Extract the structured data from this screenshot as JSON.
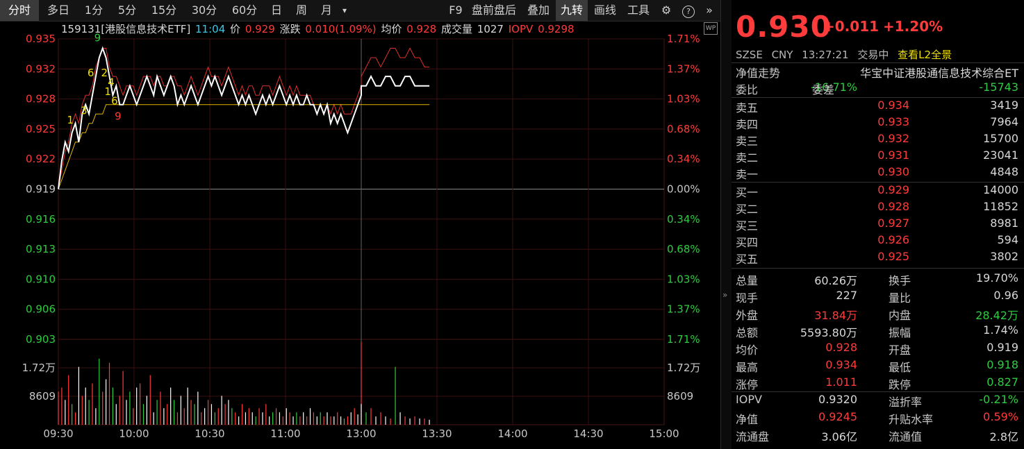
{
  "toolbar": {
    "periods": [
      "分时",
      "多日",
      "1分",
      "5分",
      "15分",
      "30分",
      "60分",
      "日",
      "周",
      "月"
    ],
    "more_icon": "▾",
    "tools": [
      "F9",
      "盘前盘后",
      "叠加",
      "九转",
      "画线",
      "工具"
    ],
    "gear_icon": "⚙",
    "help_icon": "?",
    "expand_icon": "»"
  },
  "info": {
    "code_name": "159131[港股信息技术ETF]",
    "time": "11:04",
    "price_label": "价",
    "price": "0.929",
    "change_label": "涨跌",
    "change": "0.010(1.09%)",
    "avg_label": "均价",
    "avg": "0.928",
    "volume_label": "成交量",
    "volume": "1027",
    "iopv_label": "IOPV",
    "iopv": "0.9298",
    "badge": "WP"
  },
  "chart_data": {
    "type": "line",
    "price_ticks": [
      "0.935",
      "0.932",
      "0.928",
      "0.925",
      "0.922",
      "0.919",
      "0.916",
      "0.913",
      "0.910",
      "0.906",
      "0.903"
    ],
    "pct_ticks": [
      "1.71%",
      "1.37%",
      "1.03%",
      "0.68%",
      "0.34%",
      "0.00%",
      "0.34%",
      "0.68%",
      "1.03%",
      "1.37%",
      "1.71%"
    ],
    "volume_ticks": [
      "1.72万",
      "8609"
    ],
    "x_ticks": [
      "09:30",
      "10:00",
      "10:30",
      "11:00",
      "13:00",
      "13:30",
      "14:00",
      "14:30",
      "15:00"
    ],
    "prev_close": 0.919,
    "ylim": [
      0.903,
      0.935
    ],
    "price": [
      0.919,
      0.922,
      0.924,
      0.923,
      0.925,
      0.926,
      0.924,
      0.927,
      0.928,
      0.927,
      0.929,
      0.931,
      0.933,
      0.934,
      0.933,
      0.931,
      0.929,
      0.93,
      0.928,
      0.928,
      0.929,
      0.93,
      0.929,
      0.928,
      0.929,
      0.93,
      0.931,
      0.93,
      0.929,
      0.931,
      0.93,
      0.929,
      0.93,
      0.931,
      0.93,
      0.928,
      0.929,
      0.928,
      0.929,
      0.93,
      0.929,
      0.928,
      0.929,
      0.93,
      0.931,
      0.93,
      0.931,
      0.93,
      0.929,
      0.93,
      0.931,
      0.93,
      0.929,
      0.928,
      0.929,
      0.928,
      0.929,
      0.928,
      0.927,
      0.928,
      0.929,
      0.928,
      0.929,
      0.928,
      0.929,
      0.93,
      0.929,
      0.928,
      0.929,
      0.928,
      0.929,
      0.928,
      0.928,
      0.929,
      0.928,
      0.928,
      0.927,
      0.928,
      0.927,
      0.928,
      0.926,
      0.927,
      0.926,
      0.927,
      0.926,
      0.925,
      0.926,
      0.927,
      0.928,
      0.929,
      0.93,
      0.93,
      0.931,
      0.93,
      0.93,
      0.931,
      0.931,
      0.93,
      0.93,
      0.931,
      0.931,
      0.93,
      0.93,
      0.93,
      0.93
    ],
    "iopv": [
      0.919,
      0.921,
      0.923,
      0.924,
      0.926,
      0.927,
      0.926,
      0.928,
      0.929,
      0.929,
      0.93,
      0.932,
      0.933,
      0.934,
      0.934,
      0.932,
      0.931,
      0.931,
      0.93,
      0.929,
      0.93,
      0.93,
      0.93,
      0.929,
      0.93,
      0.931,
      0.931,
      0.931,
      0.93,
      0.931,
      0.931,
      0.93,
      0.93,
      0.931,
      0.931,
      0.93,
      0.93,
      0.929,
      0.93,
      0.931,
      0.93,
      0.929,
      0.93,
      0.931,
      0.932,
      0.931,
      0.931,
      0.931,
      0.93,
      0.931,
      0.932,
      0.931,
      0.93,
      0.929,
      0.93,
      0.929,
      0.93,
      0.93,
      0.929,
      0.929,
      0.93,
      0.93,
      0.93,
      0.929,
      0.93,
      0.931,
      0.93,
      0.929,
      0.93,
      0.929,
      0.93,
      0.929,
      0.929,
      0.929,
      0.929,
      0.928,
      0.928,
      0.928,
      0.928,
      0.928,
      0.927,
      0.928,
      0.927,
      0.928,
      0.927,
      0.927,
      0.927,
      0.928,
      0.929,
      0.93,
      0.931,
      0.932,
      0.933,
      0.933,
      0.932,
      0.933,
      0.934,
      0.934,
      0.933,
      0.933,
      0.934,
      0.933,
      0.933,
      0.932,
      0.932
    ],
    "avg": [
      0.919,
      0.92,
      0.921,
      0.922,
      0.923,
      0.924,
      0.924,
      0.925,
      0.925,
      0.926,
      0.926,
      0.927,
      0.927,
      0.927,
      0.928,
      0.928,
      0.928,
      0.928,
      0.928,
      0.928,
      0.928,
      0.928,
      0.928,
      0.928,
      0.928,
      0.928,
      0.928,
      0.928,
      0.928,
      0.928,
      0.928,
      0.928,
      0.928,
      0.928,
      0.928,
      0.928,
      0.928,
      0.928,
      0.928,
      0.928,
      0.928,
      0.928,
      0.928,
      0.928,
      0.928,
      0.928,
      0.928,
      0.928,
      0.928,
      0.928,
      0.928,
      0.928,
      0.928,
      0.928,
      0.928,
      0.928,
      0.928,
      0.928,
      0.928,
      0.928,
      0.928,
      0.928,
      0.928,
      0.928,
      0.928,
      0.928,
      0.928,
      0.928,
      0.928,
      0.928,
      0.928,
      0.928,
      0.928,
      0.928,
      0.928,
      0.928,
      0.928,
      0.928,
      0.928,
      0.928,
      0.928,
      0.928,
      0.928,
      0.928,
      0.928,
      0.928,
      0.928,
      0.928,
      0.928,
      0.928,
      0.928,
      0.928,
      0.928,
      0.928,
      0.928,
      0.928,
      0.928,
      0.928,
      0.928,
      0.928,
      0.928,
      0.928,
      0.928,
      0.928,
      0.928
    ],
    "volume_max": 20000,
    "volume": [
      8000,
      9000,
      6000,
      12000,
      5000,
      3000,
      14000,
      7000,
      9000,
      6000,
      10000,
      4000,
      16000,
      8000,
      11000,
      15000,
      9000,
      5000,
      7000,
      13000,
      6000,
      8000,
      4000,
      9000,
      10000,
      5000,
      7000,
      12000,
      3000,
      6000,
      8000,
      4000,
      5000,
      9000,
      6000,
      3000,
      7000,
      4000,
      9000,
      6000,
      5000,
      8000,
      3000,
      4000,
      6000,
      5000,
      3000,
      4000,
      7000,
      5000,
      6000,
      4000,
      3000,
      2000,
      5000,
      3000,
      4000,
      3000,
      2000,
      4000,
      3000,
      5000,
      2000,
      3000,
      4000,
      3000,
      2000,
      4000,
      3000,
      2000,
      3000,
      2000,
      3000,
      2000,
      4000,
      3000,
      2000,
      3000,
      2000,
      3000,
      2000,
      2000,
      3000,
      2000,
      1500,
      2000,
      3000,
      4000,
      2500,
      20000,
      5000,
      3000,
      4000,
      2000,
      3000,
      2000,
      1500,
      14000,
      3000,
      2000,
      1500,
      2000,
      1500,
      1500,
      1200
    ],
    "volume_colors": [
      "r",
      "r",
      "w",
      "r",
      "g",
      "r",
      "w",
      "r",
      "w",
      "g",
      "r",
      "w",
      "g",
      "r",
      "w",
      "r",
      "g",
      "w",
      "r",
      "r",
      "w",
      "g",
      "r",
      "w",
      "r",
      "g",
      "w",
      "r",
      "w",
      "g",
      "r",
      "w",
      "r",
      "w",
      "g",
      "r",
      "w",
      "r",
      "w",
      "r",
      "g",
      "w",
      "r",
      "w",
      "r",
      "w",
      "g",
      "r",
      "w",
      "r",
      "w",
      "g",
      "r",
      "w",
      "r",
      "w",
      "r",
      "w",
      "g",
      "r",
      "w",
      "r",
      "w",
      "g",
      "r",
      "w",
      "r",
      "w",
      "r",
      "w",
      "g",
      "r",
      "w",
      "r",
      "w",
      "r",
      "w",
      "g",
      "r",
      "w",
      "r",
      "w",
      "r",
      "w",
      "g",
      "r",
      "w",
      "r",
      "w",
      "r",
      "w",
      "g",
      "r",
      "w",
      "r",
      "w",
      "r",
      "g",
      "w",
      "r",
      "w",
      "r",
      "w",
      "r",
      "w"
    ],
    "markers": [
      {
        "i": 5,
        "label": "1",
        "color": "yellow"
      },
      {
        "i": 9,
        "label": "3",
        "color": "yellow"
      },
      {
        "i": 11,
        "label": "6",
        "color": "yellow"
      },
      {
        "i": 13,
        "label": "9",
        "color": "green"
      },
      {
        "i": 16,
        "label": "1",
        "color": "yellow"
      },
      {
        "i": 17,
        "label": "4",
        "color": "yellow"
      },
      {
        "i": 15,
        "label": "2",
        "color": "yellow"
      },
      {
        "i": 18,
        "label": "6",
        "color": "yellow"
      },
      {
        "i": 19,
        "label": "9",
        "color": "red"
      }
    ],
    "colors": {
      "price": "#ffffff",
      "iopv": "#e03030",
      "avg": "#e6b800",
      "up": "#ff3b3b",
      "down": "#2ecc40",
      "grid": "#3a1010"
    }
  },
  "panel": {
    "price": "0.930",
    "change": "+0.011",
    "change_pct": "+1.20%",
    "exchange": "SZSE",
    "currency": "CNY",
    "time": "13:27:21",
    "status": "交易中",
    "l2_link": "查看L2全景",
    "nav_trend_label": "净值走势",
    "fund_name": "华宝中证港股通信息技术综合ET",
    "wb_label": "委比",
    "wb_value": "-16.71%",
    "wc_label": "委差",
    "wc_value": "-15743",
    "asks": [
      {
        "label": "卖五",
        "price": "0.934",
        "vol": "3419"
      },
      {
        "label": "卖四",
        "price": "0.933",
        "vol": "7964"
      },
      {
        "label": "卖三",
        "price": "0.932",
        "vol": "15700"
      },
      {
        "label": "卖二",
        "price": "0.931",
        "vol": "23041"
      },
      {
        "label": "卖一",
        "price": "0.930",
        "vol": "4848"
      }
    ],
    "bids": [
      {
        "label": "买一",
        "price": "0.929",
        "vol": "14000"
      },
      {
        "label": "买二",
        "price": "0.928",
        "vol": "11852"
      },
      {
        "label": "买三",
        "price": "0.927",
        "vol": "8981"
      },
      {
        "label": "买四",
        "price": "0.926",
        "vol": "594"
      },
      {
        "label": "买五",
        "price": "0.925",
        "vol": "3802"
      }
    ],
    "stats": [
      {
        "l1": "总量",
        "v1": "60.26万",
        "c1": "white",
        "l2": "换手",
        "v2": "19.70%",
        "c2": "white"
      },
      {
        "l1": "现手",
        "v1": "227",
        "c1": "white",
        "l2": "量比",
        "v2": "0.96",
        "c2": "white"
      },
      {
        "l1": "外盘",
        "v1": "31.84万",
        "c1": "red",
        "l2": "内盘",
        "v2": "28.42万",
        "c2": "green"
      },
      {
        "l1": "总额",
        "v1": "5593.80万",
        "c1": "white",
        "l2": "振幅",
        "v2": "1.74%",
        "c2": "white"
      },
      {
        "l1": "均价",
        "v1": "0.928",
        "c1": "red",
        "l2": "开盘",
        "v2": "0.919",
        "c2": "white"
      },
      {
        "l1": "最高",
        "v1": "0.934",
        "c1": "red",
        "l2": "最低",
        "v2": "0.918",
        "c2": "green"
      },
      {
        "l1": "涨停",
        "v1": "1.011",
        "c1": "red",
        "l2": "跌停",
        "v2": "0.827",
        "c2": "green"
      }
    ],
    "stats2": [
      {
        "l1": "IOPV",
        "v1": "0.9320",
        "c1": "white",
        "l2": "溢折率",
        "v2": "-0.21%",
        "c2": "green"
      },
      {
        "l1": "净值",
        "v1": "0.9245",
        "c1": "red",
        "l2": "升贴水率",
        "v2": "0.59%",
        "c2": "red"
      },
      {
        "l1": "流通盘",
        "v1": "3.06亿",
        "c1": "white",
        "l2": "流通值",
        "v2": "2.8亿",
        "c2": "white"
      }
    ],
    "collapse_icon": "»"
  }
}
